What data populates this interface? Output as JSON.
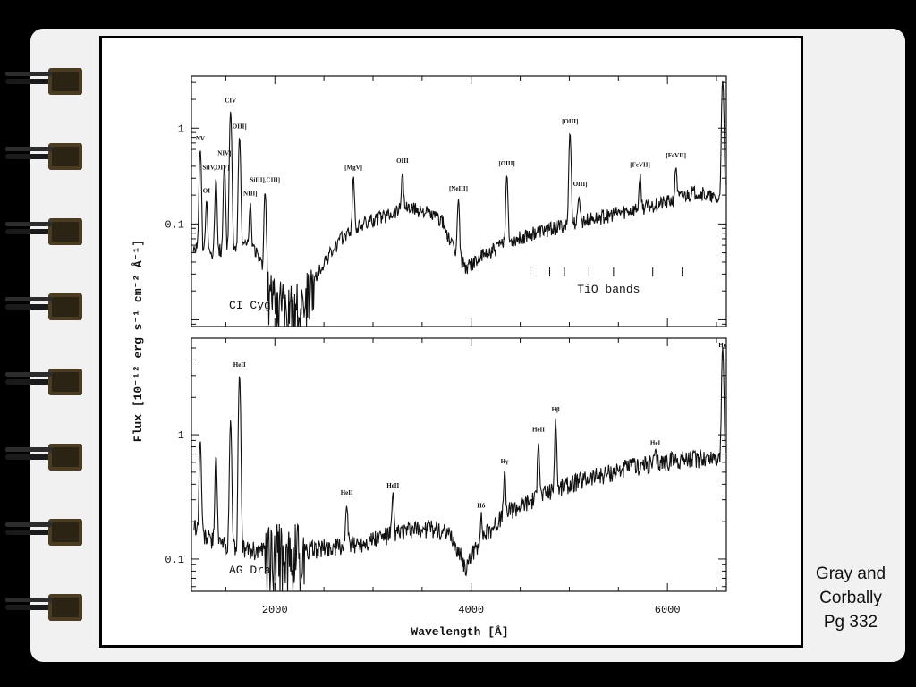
{
  "citation": {
    "line1": "Gray and",
    "line2": "Corbally",
    "line3": "Pg 332"
  },
  "rings": 8,
  "colors": {
    "page": "#000000",
    "notebook": "#f1f1f1",
    "ink": "#111111",
    "ring": "#4a3c22"
  },
  "chart_data": [
    {
      "type": "line",
      "name_label": "CI Cyg",
      "yscale": "log",
      "xlim": [
        1150,
        6600
      ],
      "ylim": [
        0.0085,
        3.5
      ],
      "yticks": [
        {
          "value": 1,
          "label": "1"
        },
        {
          "value": 0.1,
          "label": "0.1"
        }
      ],
      "continuum": [
        [
          1150,
          0.06
        ],
        [
          1300,
          0.05
        ],
        [
          1500,
          0.055
        ],
        [
          1700,
          0.06
        ],
        [
          1800,
          0.055
        ],
        [
          1900,
          0.03
        ],
        [
          2000,
          0.018
        ],
        [
          2150,
          0.013
        ],
        [
          2300,
          0.016
        ],
        [
          2500,
          0.04
        ],
        [
          2700,
          0.075
        ],
        [
          2900,
          0.1
        ],
        [
          3100,
          0.12
        ],
        [
          3300,
          0.15
        ],
        [
          3500,
          0.14
        ],
        [
          3700,
          0.11
        ],
        [
          3800,
          0.06
        ],
        [
          3950,
          0.035
        ],
        [
          4100,
          0.045
        ],
        [
          4300,
          0.06
        ],
        [
          4600,
          0.08
        ],
        [
          5000,
          0.1
        ],
        [
          5500,
          0.13
        ],
        [
          6000,
          0.17
        ],
        [
          6300,
          0.22
        ],
        [
          6500,
          0.18
        ]
      ],
      "emission_lines": [
        {
          "x": 1240,
          "peak": 0.6,
          "label": "NV"
        },
        {
          "x": 1304,
          "peak": 0.17,
          "label": "OI"
        },
        {
          "x": 1400,
          "peak": 0.3,
          "label": "SiIV,OIV]"
        },
        {
          "x": 1486,
          "peak": 0.42,
          "label": "NIV]"
        },
        {
          "x": 1549,
          "peak": 1.5,
          "label": "CIV"
        },
        {
          "x": 1640,
          "peak": 0.8,
          "label": "OIII]"
        },
        {
          "x": 1750,
          "peak": 0.16,
          "label": "NIII]"
        },
        {
          "x": 1900,
          "peak": 0.22,
          "label": "SiIII],CIII]"
        },
        {
          "x": 2800,
          "peak": 0.3,
          "label": "[MgV]"
        },
        {
          "x": 3300,
          "peak": 0.35,
          "label": "OIII"
        },
        {
          "x": 3870,
          "peak": 0.18,
          "label": "[NeIII]"
        },
        {
          "x": 4363,
          "peak": 0.33,
          "label": "[OIII]"
        },
        {
          "x": 5007,
          "peak": 0.9,
          "label": "[OIII]"
        },
        {
          "x": 5100,
          "peak": 0.2,
          "label": "[OIII]"
        },
        {
          "x": 5721,
          "peak": 0.32,
          "label": "[FeVII]"
        },
        {
          "x": 6087,
          "peak": 0.4,
          "label": "[FeVII]"
        },
        {
          "x": 6563,
          "peak": 3.2,
          "label": ""
        }
      ],
      "annotation": "TiO bands",
      "tio_band_x": [
        4600,
        4800,
        4950,
        5200,
        5450,
        5850,
        6150
      ]
    },
    {
      "type": "line",
      "name_label": "AG Dra",
      "yscale": "log",
      "xlim": [
        1150,
        6600
      ],
      "ylim": [
        0.055,
        6
      ],
      "yticks": [
        {
          "value": 1,
          "label": "1"
        },
        {
          "value": 0.1,
          "label": "0.1"
        }
      ],
      "xticks": [
        {
          "value": 2000,
          "label": "2000"
        },
        {
          "value": 4000,
          "label": "4000"
        },
        {
          "value": 6000,
          "label": "6000"
        }
      ],
      "continuum": [
        [
          1150,
          0.2
        ],
        [
          1300,
          0.15
        ],
        [
          1500,
          0.13
        ],
        [
          1700,
          0.12
        ],
        [
          1900,
          0.115
        ],
        [
          2100,
          0.115
        ],
        [
          2400,
          0.12
        ],
        [
          2800,
          0.13
        ],
        [
          3200,
          0.16
        ],
        [
          3600,
          0.18
        ],
        [
          3800,
          0.15
        ],
        [
          3950,
          0.085
        ],
        [
          4100,
          0.15
        ],
        [
          4400,
          0.25
        ],
        [
          4800,
          0.35
        ],
        [
          5200,
          0.45
        ],
        [
          5600,
          0.55
        ],
        [
          6000,
          0.62
        ],
        [
          6300,
          0.65
        ],
        [
          6600,
          0.68
        ]
      ],
      "emission_lines": [
        {
          "x": 1240,
          "peak": 0.9,
          "label": ""
        },
        {
          "x": 1400,
          "peak": 0.7,
          "label": ""
        },
        {
          "x": 1549,
          "peak": 1.3,
          "label": ""
        },
        {
          "x": 1640,
          "peak": 3.0,
          "label": "HeII"
        },
        {
          "x": 2733,
          "peak": 0.28,
          "label": "HeII"
        },
        {
          "x": 3203,
          "peak": 0.32,
          "label": "HeII"
        },
        {
          "x": 4101,
          "peak": 0.22,
          "label": "Hδ"
        },
        {
          "x": 4340,
          "peak": 0.5,
          "label": "Hγ"
        },
        {
          "x": 4686,
          "peak": 0.9,
          "label": "HeII"
        },
        {
          "x": 4861,
          "peak": 1.3,
          "label": "Hβ"
        },
        {
          "x": 5876,
          "peak": 0.7,
          "label": "HeI"
        },
        {
          "x": 6563,
          "peak": 5.0,
          "label": "Hα"
        }
      ]
    }
  ],
  "axes": {
    "xlabel": "Wavelength [Å]",
    "ylabel": "Flux [10⁻¹² erg s⁻¹ cm⁻² Å⁻¹]"
  }
}
